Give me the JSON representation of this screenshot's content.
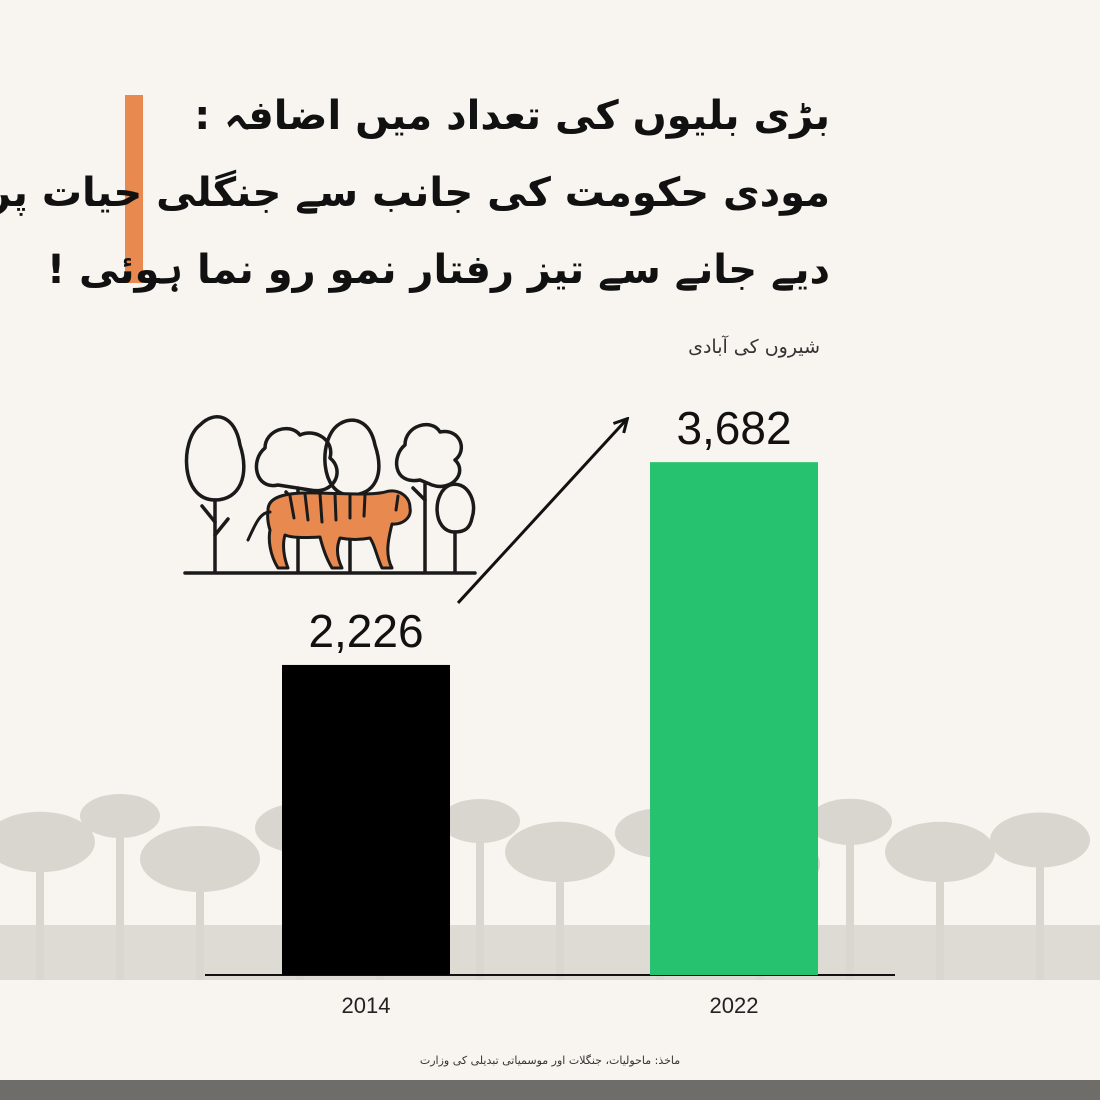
{
  "header": {
    "title_lines": [
      "بڑی بلیوں کی تعداد میں اضافہ :",
      "مودی حکومت کی جانب سے جنگلی حیات پر زور",
      "دیے جانے سے تیز رفتار نمو رو نما ہوئی !"
    ],
    "subtitle": "شیروں کی آبادی"
  },
  "chart_data": {
    "type": "bar",
    "categories": [
      "2014",
      "2022"
    ],
    "values": [
      2226,
      3682
    ],
    "value_labels": [
      "2,226",
      "3,682"
    ],
    "title": "",
    "xlabel": "",
    "ylabel": "",
    "ylim": [
      0,
      4200
    ],
    "colors": [
      "#000000",
      "#27c26f"
    ],
    "grid": false,
    "legend": "none",
    "arrow_between_bars": true
  },
  "source": "ماخذ: ماحولیات، جنگلات اور موسمیاتی تبدیلی کی وزارت",
  "colors": {
    "background": "#f8f5f0",
    "accent": "#e8894f",
    "footer": "#6f6d69",
    "forest_silhouette": "#d9d6d0",
    "tiger": "#e8894f"
  },
  "icons": {
    "illustration": "tiger-in-forest-icon",
    "background": "forest-silhouette"
  }
}
